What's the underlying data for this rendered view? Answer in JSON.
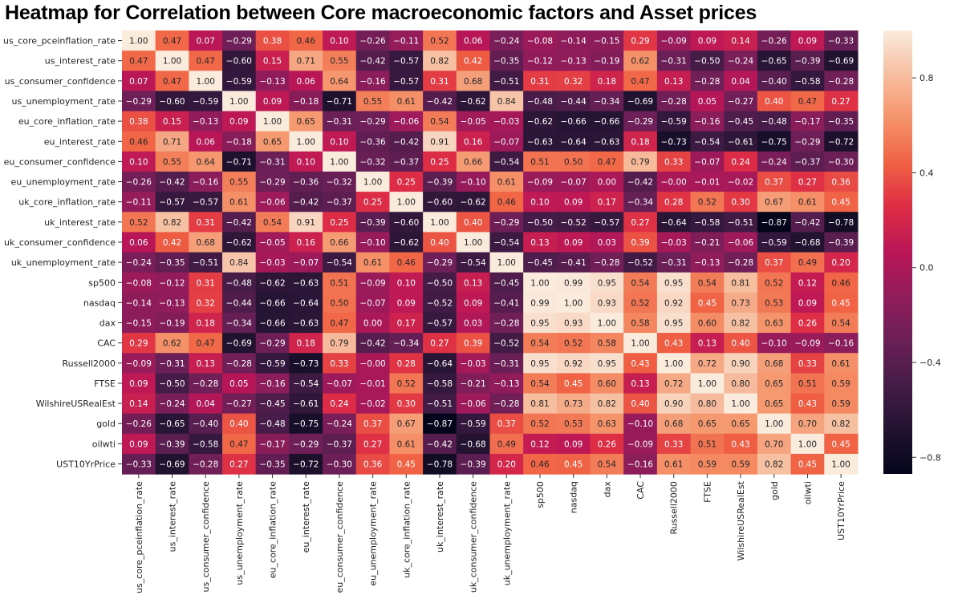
{
  "chart_data": {
    "type": "heatmap",
    "title": "Heatmap for Correlation between Core macroeconomic factors and Asset prices",
    "rows": [
      "us_core_pceinflation_rate",
      "us_interest_rate",
      "us_consumer_confidence",
      "us_unemployment_rate",
      "eu_core_inflation_rate",
      "eu_interest_rate",
      "eu_consumer_confidence",
      "eu_unemployment_rate",
      "uk_core_inflation_rate",
      "uk_interest_rate",
      "uk_consumer_confidence",
      "uk_unemployment_rate",
      "sp500",
      "nasdaq",
      "dax",
      "CAC",
      "Russell2000",
      "FTSE",
      "WilshireUSRealEst",
      "gold",
      "oilwti",
      "UST10YrPrice"
    ],
    "columns": [
      "us_core_pceinflation_rate",
      "us_interest_rate",
      "us_consumer_confidence",
      "us_unemployment_rate",
      "eu_core_inflation_rate",
      "eu_interest_rate",
      "eu_consumer_confidence",
      "eu_unemployment_rate",
      "uk_core_inflation_rate",
      "uk_interest_rate",
      "uk_consumer_confidence",
      "uk_unemployment_rate",
      "sp500",
      "nasdaq",
      "dax",
      "CAC",
      "Russell2000",
      "FTSE",
      "WilshireUSRealEst",
      "gold",
      "oilwti",
      "UST10YrPrice"
    ],
    "values": [
      [
        "1.00",
        "0.47",
        "0.07",
        "-0.29",
        "0.38",
        "0.46",
        "0.10",
        "-0.26",
        "-0.11",
        "0.52",
        "0.06",
        "-0.24",
        "-0.08",
        "-0.14",
        "-0.15",
        "0.29",
        "-0.09",
        "0.09",
        "0.14",
        "-0.26",
        "0.09",
        "-0.33"
      ],
      [
        "0.47",
        "1.00",
        "0.47",
        "-0.60",
        "0.15",
        "0.71",
        "0.55",
        "-0.42",
        "-0.57",
        "0.82",
        "0.42",
        "-0.35",
        "-0.12",
        "-0.13",
        "-0.19",
        "0.62",
        "-0.31",
        "-0.50",
        "-0.24",
        "-0.65",
        "-0.39",
        "-0.69"
      ],
      [
        "0.07",
        "0.47",
        "1.00",
        "-0.59",
        "-0.13",
        "0.06",
        "0.64",
        "-0.16",
        "-0.57",
        "0.31",
        "0.68",
        "-0.51",
        "0.31",
        "0.32",
        "0.18",
        "0.47",
        "0.13",
        "-0.28",
        "0.04",
        "-0.40",
        "-0.58",
        "-0.28"
      ],
      [
        "-0.29",
        "-0.60",
        "-0.59",
        "1.00",
        "0.09",
        "-0.18",
        "-0.71",
        "0.55",
        "0.61",
        "-0.42",
        "-0.62",
        "0.84",
        "-0.48",
        "-0.44",
        "-0.34",
        "-0.69",
        "-0.28",
        "0.05",
        "-0.27",
        "0.40",
        "0.47",
        "0.27"
      ],
      [
        "0.38",
        "0.15",
        "-0.13",
        "0.09",
        "1.00",
        "0.65",
        "-0.31",
        "-0.29",
        "-0.06",
        "0.54",
        "-0.05",
        "-0.03",
        "-0.62",
        "-0.66",
        "-0.66",
        "-0.29",
        "-0.59",
        "-0.16",
        "-0.45",
        "-0.48",
        "-0.17",
        "-0.35"
      ],
      [
        "0.46",
        "0.71",
        "0.06",
        "-0.18",
        "0.65",
        "1.00",
        "0.10",
        "-0.36",
        "-0.42",
        "0.91",
        "0.16",
        "-0.07",
        "-0.63",
        "-0.64",
        "-0.63",
        "0.18",
        "-0.73",
        "-0.54",
        "-0.61",
        "-0.75",
        "-0.29",
        "-0.72"
      ],
      [
        "0.10",
        "0.55",
        "0.64",
        "-0.71",
        "-0.31",
        "0.10",
        "1.00",
        "-0.32",
        "-0.37",
        "0.25",
        "0.66",
        "-0.54",
        "0.51",
        "0.50",
        "0.47",
        "0.79",
        "0.33",
        "-0.07",
        "0.24",
        "-0.24",
        "-0.37",
        "-0.30"
      ],
      [
        "-0.26",
        "-0.42",
        "-0.16",
        "0.55",
        "-0.29",
        "-0.36",
        "-0.32",
        "1.00",
        "0.25",
        "-0.39",
        "-0.10",
        "0.61",
        "-0.09",
        "-0.07",
        "0.00",
        "-0.42",
        "-0.00",
        "-0.01",
        "-0.02",
        "0.37",
        "0.27",
        "0.36"
      ],
      [
        "-0.11",
        "-0.57",
        "-0.57",
        "0.61",
        "-0.06",
        "-0.42",
        "-0.37",
        "0.25",
        "1.00",
        "-0.60",
        "-0.62",
        "0.46",
        "0.10",
        "0.09",
        "0.17",
        "-0.34",
        "0.28",
        "0.52",
        "0.30",
        "0.67",
        "0.61",
        "0.45"
      ],
      [
        "0.52",
        "0.82",
        "0.31",
        "-0.42",
        "0.54",
        "0.91",
        "0.25",
        "-0.39",
        "-0.60",
        "1.00",
        "0.40",
        "-0.29",
        "-0.50",
        "-0.52",
        "-0.57",
        "0.27",
        "-0.64",
        "-0.58",
        "-0.51",
        "-0.87",
        "-0.42",
        "-0.78"
      ],
      [
        "0.06",
        "0.42",
        "0.68",
        "-0.62",
        "-0.05",
        "0.16",
        "0.66",
        "-0.10",
        "-0.62",
        "0.40",
        "1.00",
        "-0.54",
        "0.13",
        "0.09",
        "0.03",
        "0.39",
        "-0.03",
        "-0.21",
        "-0.06",
        "-0.59",
        "-0.68",
        "-0.39"
      ],
      [
        "-0.24",
        "-0.35",
        "-0.51",
        "0.84",
        "-0.03",
        "-0.07",
        "-0.54",
        "0.61",
        "0.46",
        "-0.29",
        "-0.54",
        "1.00",
        "-0.45",
        "-0.41",
        "-0.28",
        "-0.52",
        "-0.31",
        "-0.13",
        "-0.28",
        "0.37",
        "0.49",
        "0.20"
      ],
      [
        "-0.08",
        "-0.12",
        "0.31",
        "-0.48",
        "-0.62",
        "-0.63",
        "0.51",
        "-0.09",
        "0.10",
        "-0.50",
        "0.13",
        "-0.45",
        "1.00",
        "0.99",
        "0.95",
        "0.54",
        "0.95",
        "0.54",
        "0.81",
        "0.52",
        "0.12",
        "0.46"
      ],
      [
        "-0.14",
        "-0.13",
        "0.32",
        "-0.44",
        "-0.66",
        "-0.64",
        "0.50",
        "-0.07",
        "0.09",
        "-0.52",
        "0.09",
        "-0.41",
        "0.99",
        "1.00",
        "0.93",
        "0.52",
        "0.92",
        "0.45",
        "0.73",
        "0.53",
        "0.09",
        "0.45"
      ],
      [
        "-0.15",
        "-0.19",
        "0.18",
        "-0.34",
        "-0.66",
        "-0.63",
        "0.47",
        "0.00",
        "0.17",
        "-0.57",
        "0.03",
        "-0.28",
        "0.95",
        "0.93",
        "1.00",
        "0.58",
        "0.95",
        "0.60",
        "0.82",
        "0.63",
        "0.26",
        "0.54"
      ],
      [
        "0.29",
        "0.62",
        "0.47",
        "-0.69",
        "-0.29",
        "0.18",
        "0.79",
        "-0.42",
        "-0.34",
        "0.27",
        "0.39",
        "-0.52",
        "0.54",
        "0.52",
        "0.58",
        "1.00",
        "0.43",
        "0.13",
        "0.40",
        "-0.10",
        "-0.09",
        "-0.16"
      ],
      [
        "-0.09",
        "-0.31",
        "0.13",
        "-0.28",
        "-0.59",
        "-0.73",
        "0.33",
        "-0.00",
        "0.28",
        "-0.64",
        "-0.03",
        "-0.31",
        "0.95",
        "0.92",
        "0.95",
        "0.43",
        "1.00",
        "0.72",
        "0.90",
        "0.68",
        "0.33",
        "0.61"
      ],
      [
        "0.09",
        "-0.50",
        "-0.28",
        "0.05",
        "-0.16",
        "-0.54",
        "-0.07",
        "-0.01",
        "0.52",
        "-0.58",
        "-0.21",
        "-0.13",
        "0.54",
        "0.45",
        "0.60",
        "0.13",
        "0.72",
        "1.00",
        "0.80",
        "0.65",
        "0.51",
        "0.59"
      ],
      [
        "0.14",
        "-0.24",
        "0.04",
        "-0.27",
        "-0.45",
        "-0.61",
        "0.24",
        "-0.02",
        "0.30",
        "-0.51",
        "-0.06",
        "-0.28",
        "0.81",
        "0.73",
        "0.82",
        "0.40",
        "0.90",
        "0.80",
        "1.00",
        "0.65",
        "0.43",
        "0.59"
      ],
      [
        "-0.26",
        "-0.65",
        "-0.40",
        "0.40",
        "-0.48",
        "-0.75",
        "-0.24",
        "0.37",
        "0.67",
        "-0.87",
        "-0.59",
        "0.37",
        "0.52",
        "0.53",
        "0.63",
        "-0.10",
        "0.68",
        "0.65",
        "0.65",
        "1.00",
        "0.70",
        "0.82"
      ],
      [
        "0.09",
        "-0.39",
        "-0.58",
        "0.47",
        "-0.17",
        "-0.29",
        "-0.37",
        "0.27",
        "0.61",
        "-0.42",
        "-0.68",
        "0.49",
        "0.12",
        "0.09",
        "0.26",
        "-0.09",
        "0.33",
        "0.51",
        "0.43",
        "0.70",
        "1.00",
        "0.45"
      ],
      [
        "-0.33",
        "-0.69",
        "-0.28",
        "0.27",
        "-0.35",
        "-0.72",
        "-0.30",
        "0.36",
        "0.45",
        "-0.78",
        "-0.39",
        "0.20",
        "0.46",
        "0.45",
        "0.54",
        "-0.16",
        "0.61",
        "0.59",
        "0.59",
        "0.82",
        "0.45",
        "1.00"
      ]
    ],
    "colorbar": {
      "range": [
        -0.87,
        1.0
      ],
      "ticks": [
        "0.8",
        "0.4",
        "0.0",
        "−0.4",
        "−0.8"
      ]
    },
    "colormap": "rocket"
  }
}
